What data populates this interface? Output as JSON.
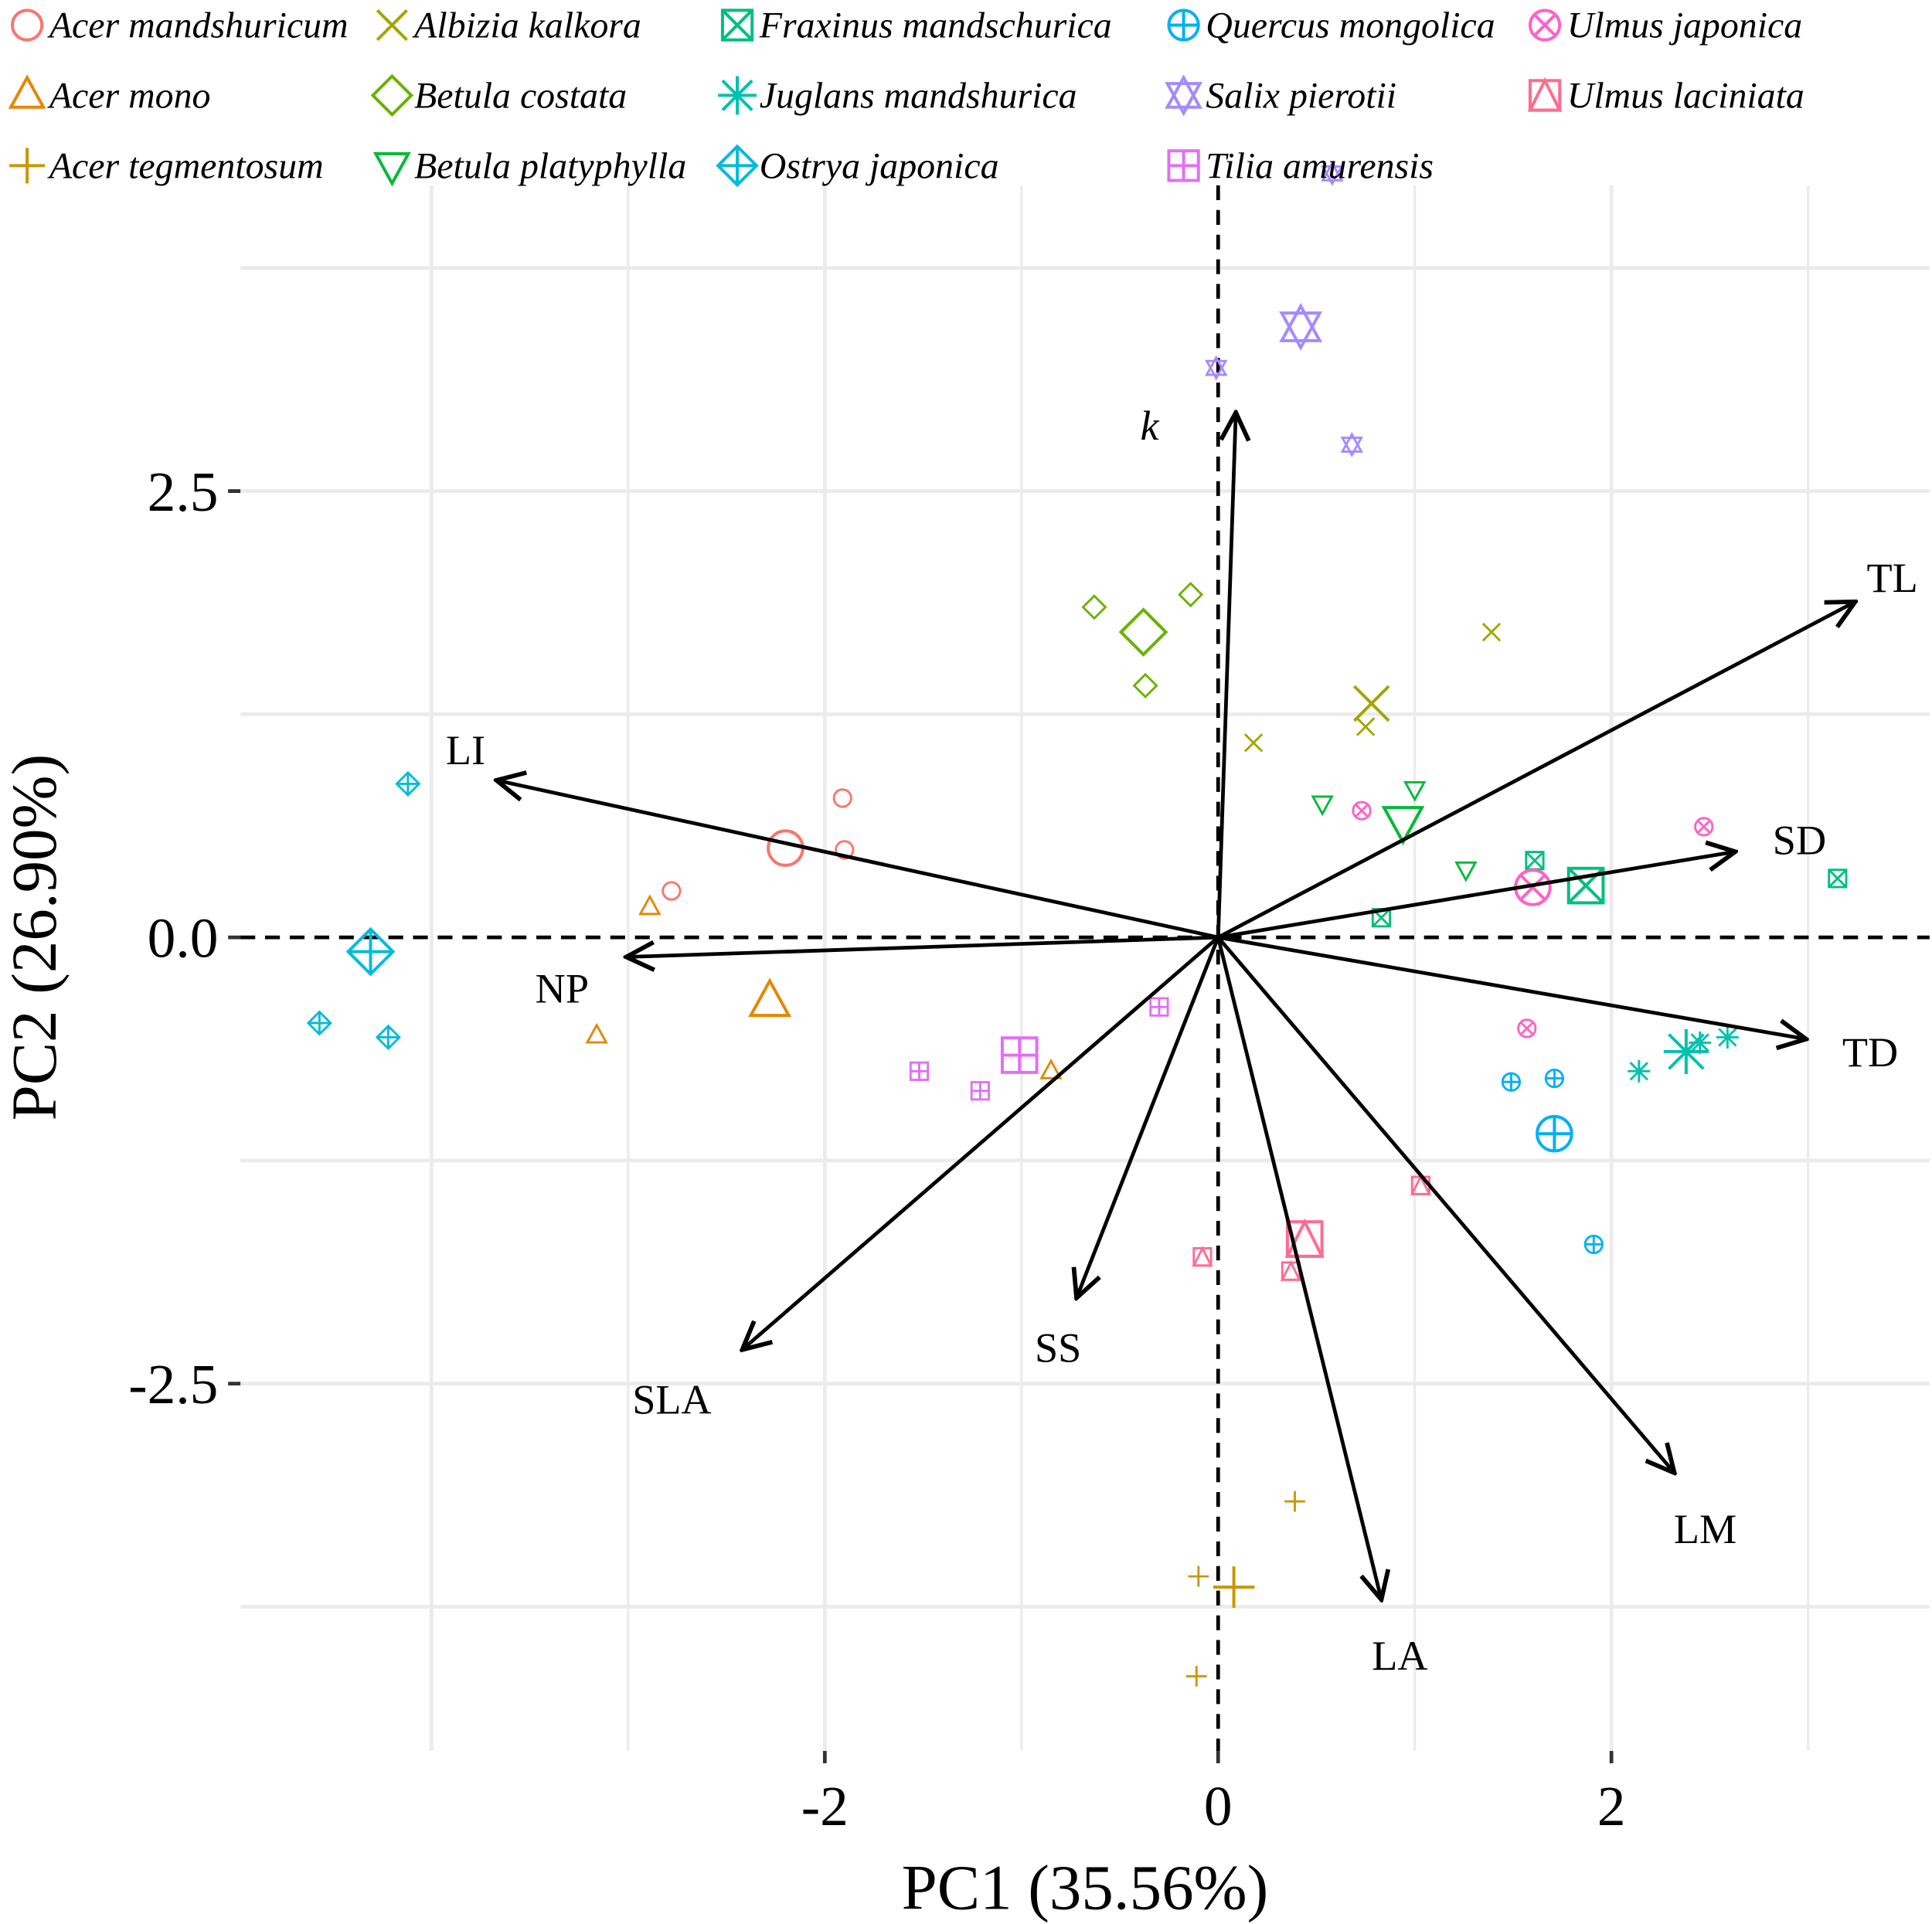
{
  "chart_data": {
    "type": "scatter",
    "title": "",
    "xlabel": "PC1 (35.56%)",
    "ylabel": "PC2 (26.90%)",
    "xticks": [
      {
        "v": -2,
        "label": "-2"
      },
      {
        "v": 0,
        "label": "0"
      },
      {
        "v": 2,
        "label": "2"
      }
    ],
    "yticks": [
      {
        "v": 2.5,
        "label": "2.5"
      },
      {
        "v": 0,
        "label": "0.0"
      },
      {
        "v": -2.5,
        "label": "-2.5"
      }
    ],
    "xlim": [
      -4.96,
      3.6
    ],
    "ylim": [
      -4.6,
      4.9
    ],
    "grid": true,
    "legend_position": "top",
    "series": [
      {
        "name": "Acer mandshuricum",
        "shape": "circle",
        "color": "#F8766D",
        "points": [
          [
            -1.91,
            0.78
          ],
          [
            -1.9,
            0.49
          ],
          [
            -2.78,
            0.26
          ]
        ],
        "centroid": [
          -2.2,
          0.5
        ]
      },
      {
        "name": "Acer mono",
        "shape": "triangle",
        "color": "#E58700",
        "points": [
          [
            -2.89,
            0.17
          ],
          [
            -3.16,
            -0.55
          ],
          [
            -0.85,
            -0.75
          ]
        ],
        "centroid": [
          -2.28,
          -0.36
        ]
      },
      {
        "name": "Acer tegmentosum",
        "shape": "plus",
        "color": "#C99800",
        "points": [
          [
            0.39,
            -3.16
          ],
          [
            -0.1,
            -3.58
          ],
          [
            -0.11,
            -4.14
          ]
        ],
        "centroid": [
          0.08,
          -3.64
        ]
      },
      {
        "name": "Albizia kalkora",
        "shape": "x",
        "color": "#A3A500",
        "points": [
          [
            1.39,
            1.71
          ],
          [
            0.18,
            1.09
          ],
          [
            0.75,
            1.18
          ]
        ],
        "centroid": [
          0.78,
          1.31
        ]
      },
      {
        "name": "Betula costata",
        "shape": "diamond",
        "color": "#6BB100",
        "points": [
          [
            -0.63,
            1.85
          ],
          [
            -0.14,
            1.92
          ],
          [
            -0.37,
            1.41
          ]
        ],
        "centroid": [
          -0.38,
          1.71
        ]
      },
      {
        "name": "Betula platyphylla",
        "shape": "triangle-down",
        "color": "#00BA38",
        "points": [
          [
            0.53,
            0.75
          ],
          [
            1.0,
            0.83
          ],
          [
            1.26,
            0.38
          ]
        ],
        "centroid": [
          0.94,
          0.65
        ]
      },
      {
        "name": "Fraxinus mandschurica",
        "shape": "square-x",
        "color": "#00BF7D",
        "points": [
          [
            1.61,
            0.43
          ],
          [
            0.83,
            0.11
          ],
          [
            3.15,
            0.33
          ]
        ],
        "centroid": [
          1.87,
          0.29
        ]
      },
      {
        "name": "Juglans mandshurica",
        "shape": "asterisk",
        "color": "#00C0AF",
        "points": [
          [
            2.14,
            -0.75
          ],
          [
            2.45,
            -0.59
          ],
          [
            2.59,
            -0.56
          ]
        ],
        "centroid": [
          2.38,
          -0.64
        ]
      },
      {
        "name": "Ostrya japonica",
        "shape": "diamond-plus",
        "color": "#00BCD8",
        "points": [
          [
            -4.12,
            0.86
          ],
          [
            -4.57,
            -0.48
          ],
          [
            -4.22,
            -0.56
          ]
        ],
        "centroid": [
          -4.31,
          -0.08
        ]
      },
      {
        "name": "Quercus mongolica",
        "shape": "circle-plus",
        "color": "#00B0F6",
        "points": [
          [
            1.49,
            -0.81
          ],
          [
            1.71,
            -0.79
          ],
          [
            1.91,
            -1.72
          ]
        ],
        "centroid": [
          1.71,
          -1.1
        ]
      },
      {
        "name": "Salix pierotii",
        "shape": "star",
        "color": "#A58AFF",
        "points": [
          [
            -0.01,
            3.19
          ],
          [
            0.68,
            2.76
          ],
          [
            0.58,
            4.28
          ]
        ],
        "centroid": [
          0.42,
          3.42
        ]
      },
      {
        "name": "Tilia amurensis",
        "shape": "square-plus",
        "color": "#E36EF6",
        "points": [
          [
            -0.3,
            -0.39
          ],
          [
            -1.52,
            -0.75
          ],
          [
            -1.21,
            -0.86
          ]
        ],
        "centroid": [
          -1.01,
          -0.66
        ]
      },
      {
        "name": "Ulmus japonica",
        "shape": "circle-x",
        "color": "#FF61C9",
        "points": [
          [
            0.73,
            0.71
          ],
          [
            2.47,
            0.62
          ],
          [
            1.57,
            -0.51
          ]
        ],
        "centroid": [
          1.6,
          0.28
        ]
      },
      {
        "name": "Ulmus laciniata",
        "shape": "square-triangle",
        "color": "#FF6C91",
        "points": [
          [
            1.03,
            -1.39
          ],
          [
            -0.08,
            -1.79
          ],
          [
            0.37,
            -1.87
          ]
        ],
        "centroid": [
          0.44,
          -1.69
        ]
      }
    ],
    "vectors": [
      {
        "name": "k",
        "x": 0.09,
        "y": 2.94
      },
      {
        "name": "TL",
        "x": 3.24,
        "y": 1.88
      },
      {
        "name": "SD",
        "x": 2.63,
        "y": 0.48
      },
      {
        "name": "TD",
        "x": 2.99,
        "y": -0.57
      },
      {
        "name": "LM",
        "x": 2.32,
        "y": -3.0
      },
      {
        "name": "LA",
        "x": 0.83,
        "y": -3.71
      },
      {
        "name": "SS",
        "x": -0.72,
        "y": -2.02
      },
      {
        "name": "SLA",
        "x": -2.42,
        "y": -2.31
      },
      {
        "name": "NP",
        "x": -3.01,
        "y": -0.11
      },
      {
        "name": "LI",
        "x": -3.67,
        "y": 0.88
      }
    ]
  }
}
